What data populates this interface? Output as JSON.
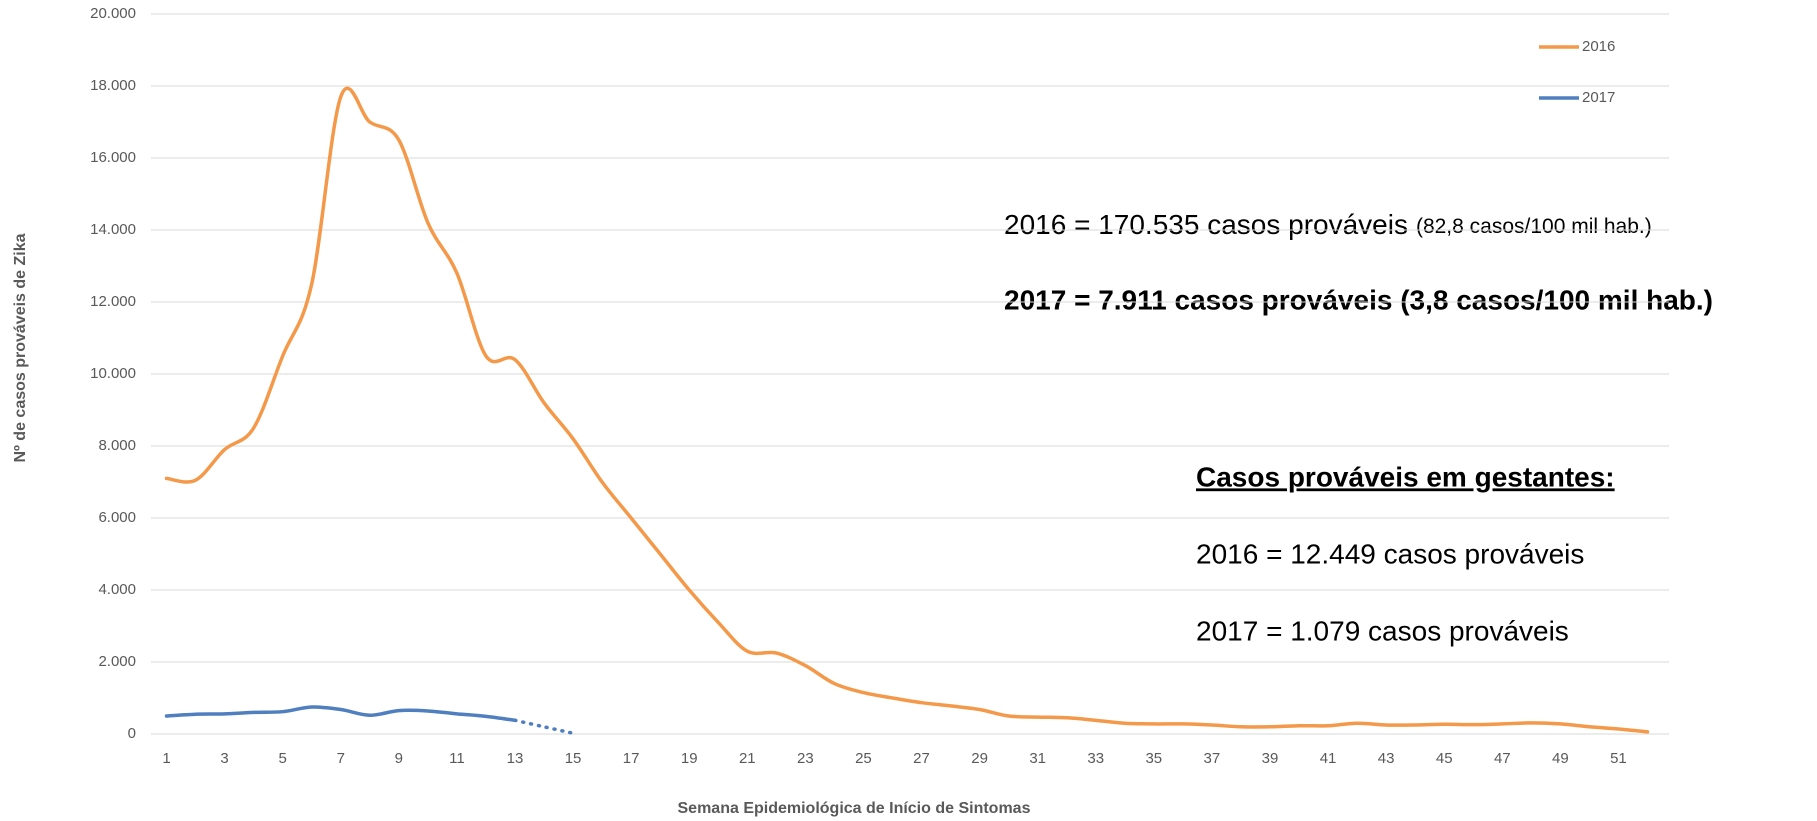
{
  "chart_data": {
    "type": "line",
    "x_label": "Semana Epidemiológica de Início de Sintomas",
    "y_label": "Nº de casos prováveis de Zika",
    "x": [
      1,
      2,
      3,
      4,
      5,
      6,
      7,
      8,
      9,
      10,
      11,
      12,
      13,
      14,
      15,
      16,
      17,
      18,
      19,
      20,
      21,
      22,
      23,
      24,
      25,
      26,
      27,
      28,
      29,
      30,
      31,
      32,
      33,
      34,
      35,
      36,
      37,
      38,
      39,
      40,
      41,
      42,
      43,
      44,
      45,
      46,
      47,
      48,
      49,
      50,
      51,
      52
    ],
    "xlim": [
      0.5,
      52.5
    ],
    "xticks": [
      1,
      3,
      5,
      7,
      9,
      11,
      13,
      15,
      17,
      19,
      21,
      23,
      25,
      27,
      29,
      31,
      33,
      35,
      37,
      39,
      41,
      43,
      45,
      47,
      49,
      51
    ],
    "ylim": [
      0,
      20000
    ],
    "yticks": [
      0,
      {
        "value": 2000,
        "label": "2.000"
      },
      {
        "value": 4000,
        "label": "4.000"
      },
      {
        "value": 6000,
        "label": "6.000"
      },
      {
        "value": 8000,
        "label": "8.000"
      },
      {
        "value": 10000,
        "label": "10.000"
      },
      {
        "value": 12000,
        "label": "12.000"
      },
      {
        "value": 14000,
        "label": "14.000"
      },
      {
        "value": 16000,
        "label": "16.000"
      },
      {
        "value": 18000,
        "label": "18.000"
      },
      {
        "value": 20000,
        "label": "20.000"
      }
    ],
    "grid": true,
    "smooth": true,
    "legend": "top-right",
    "series": [
      {
        "name": "2016",
        "color": "#f4994a",
        "values": [
          7100,
          7050,
          7900,
          8500,
          10500,
          12500,
          17700,
          17000,
          16500,
          14200,
          12800,
          10500,
          10400,
          9200,
          8200,
          7000,
          6000,
          5000,
          4000,
          3100,
          2300,
          2250,
          1900,
          1400,
          1150,
          1000,
          870,
          780,
          680,
          500,
          470,
          450,
          380,
          300,
          280,
          280,
          250,
          200,
          200,
          230,
          230,
          300,
          250,
          250,
          270,
          260,
          280,
          310,
          280,
          200,
          140,
          60
        ]
      },
      {
        "name": "2017",
        "color": "#4f7fbf",
        "dotted_from_x": 13,
        "values": [
          500,
          550,
          560,
          600,
          620,
          750,
          680,
          520,
          650,
          640,
          560,
          490,
          380,
          200,
          20,
          null,
          null,
          null,
          null,
          null,
          null,
          null,
          null,
          null,
          null,
          null,
          null,
          null,
          null,
          null,
          null,
          null,
          null,
          null,
          null,
          null,
          null,
          null,
          null,
          null,
          null,
          null,
          null,
          null,
          null,
          null,
          null,
          null,
          null,
          null,
          null,
          null
        ]
      }
    ],
    "annotations": {
      "line1_main": "2016 = 170.535 casos prováveis",
      "line1_note": "(82,8 casos/100 mil hab.)",
      "line2": "2017 = 7.911 casos prováveis (3,8 casos/100 mil hab.)",
      "heading": "Casos prováveis em gestantes:",
      "line3": "2016 = 12.449 casos prováveis",
      "line4": "2017 = 1.079 casos prováveis"
    }
  }
}
